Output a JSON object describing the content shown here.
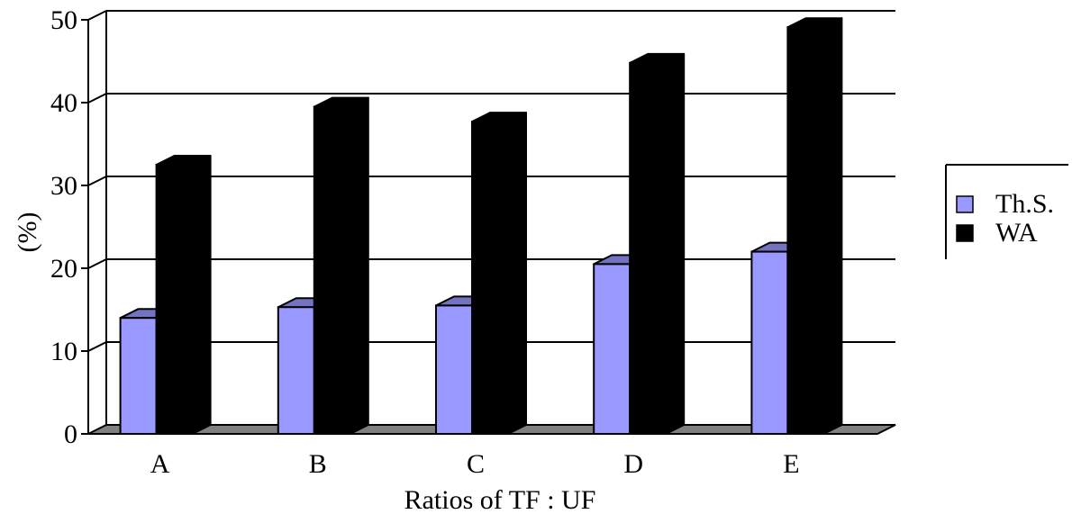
{
  "chart_data": {
    "type": "bar",
    "categories": [
      "A",
      "B",
      "C",
      "D",
      "E"
    ],
    "series": [
      {
        "name": "Th.S.",
        "values": [
          14,
          15.3,
          15.5,
          20.5,
          22
        ],
        "color": "#9999ff"
      },
      {
        "name": "WA",
        "values": [
          32.5,
          39.5,
          37.7,
          44.8,
          49.1
        ],
        "color": "#000000"
      }
    ],
    "xlabel": "Ratios of TF : UF",
    "ylabel": "(%)",
    "ylim": [
      0,
      50
    ],
    "yticks": [
      0,
      10,
      20,
      30,
      40,
      50
    ],
    "grid": true,
    "legend": "right",
    "floor_color": "#808080"
  }
}
